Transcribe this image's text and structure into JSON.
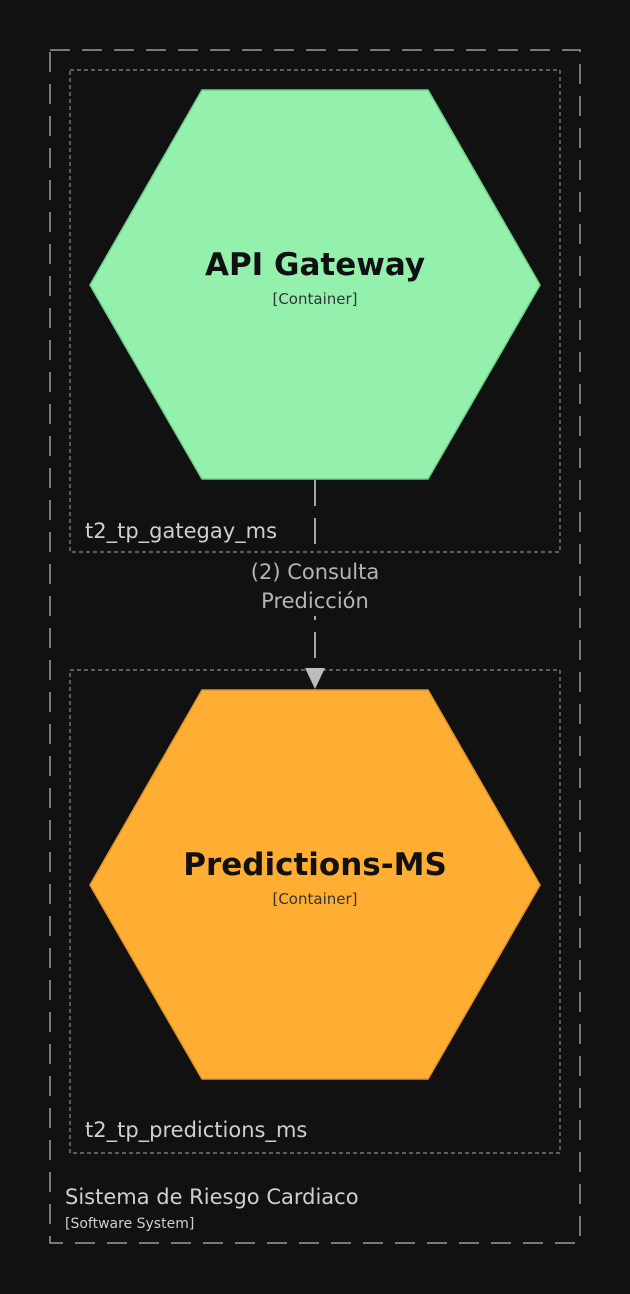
{
  "system": {
    "name": "Sistema de Riesgo Cardiaco",
    "type": "[Software System]"
  },
  "groups": [
    {
      "label": "t2_tp_gategay_ms"
    },
    {
      "label": "t2_tp_predictions_ms"
    }
  ],
  "containers": [
    {
      "name": "API Gateway",
      "type": "[Container]",
      "fill": "#93f1ad",
      "stroke": "#6fd08a"
    },
    {
      "name": "Predictions-MS",
      "type": "[Container]",
      "fill": "#ffad33",
      "stroke": "#e0952a"
    }
  ],
  "relationship": {
    "line1": "(2) Consulta",
    "line2": "Predicción"
  }
}
